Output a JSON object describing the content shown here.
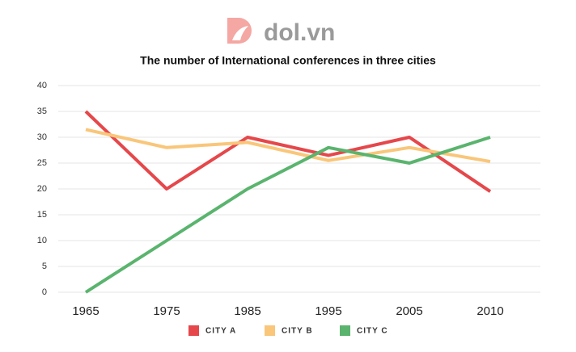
{
  "logo": "dol.vn",
  "chart_data": {
    "type": "line",
    "title": "The number of International conferences in three cities",
    "categories": [
      "1965",
      "1975",
      "1985",
      "1995",
      "2005",
      "2010"
    ],
    "series": [
      {
        "name": "CITY A",
        "color": "#e5474b",
        "values": [
          35,
          20,
          30,
          26.5,
          30,
          19.5
        ]
      },
      {
        "name": "CITY B",
        "color": "#f9c67a",
        "values": [
          31.5,
          28,
          29,
          25.5,
          28,
          25.3
        ]
      },
      {
        "name": "CITY C",
        "color": "#5ab46e",
        "values": [
          0,
          10,
          20,
          28,
          25,
          30
        ]
      }
    ],
    "ylim": [
      0,
      40
    ],
    "yticks": [
      0,
      5,
      10,
      15,
      20,
      25,
      30,
      35,
      40
    ],
    "grid": true,
    "legend": "bottom"
  }
}
